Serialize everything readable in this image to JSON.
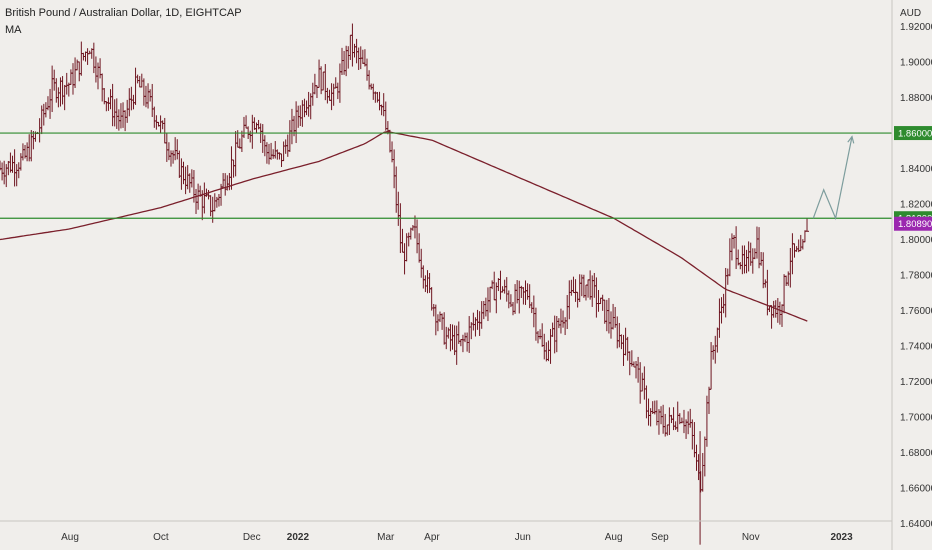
{
  "header": {
    "title": "British Pound / Australian Dollar, 1D, EIGHTCAP",
    "indicator": "MA"
  },
  "colors": {
    "background": "#f0eeeb",
    "bar": "#6e1520",
    "ma": "#7a1f2b",
    "level": "#2e8b2e",
    "arrow": "#7d9d9d",
    "current": "#9b27af"
  },
  "chart_data": {
    "type": "ohlc",
    "title": "British Pound / Australian Dollar, 1D, EIGHTCAP",
    "ylabel": "AUD",
    "ylim": [
      1.625,
      1.935
    ],
    "y_ticks": [
      "1.92000",
      "1.90000",
      "1.88000",
      "1.84000",
      "1.82000",
      "1.80000",
      "1.78000",
      "1.76000",
      "1.74000",
      "1.72000",
      "1.70000",
      "1.68000",
      "1.66000",
      "1.64000"
    ],
    "x_ticks": [
      "Aug",
      "Oct",
      "Dec",
      "2022",
      "Mar",
      "Apr",
      "Jun",
      "Aug",
      "Sep",
      "Nov",
      "2023"
    ],
    "levels": [
      {
        "value": 1.86,
        "label": "1.86000"
      },
      {
        "value": 1.812,
        "label": "1.81200"
      }
    ],
    "current_price": {
      "value": 1.8089,
      "label": "1.80890"
    },
    "close_path": [
      [
        "2021-06-15",
        1.84
      ],
      [
        "2021-07-01",
        1.845
      ],
      [
        "2021-07-10",
        1.86
      ],
      [
        "2021-07-20",
        1.885
      ],
      [
        "2021-08-01",
        1.888
      ],
      [
        "2021-08-14",
        1.91
      ],
      [
        "2021-08-25",
        1.88
      ],
      [
        "2021-09-05",
        1.865
      ],
      [
        "2021-09-15",
        1.888
      ],
      [
        "2021-09-25",
        1.875
      ],
      [
        "2021-10-05",
        1.855
      ],
      [
        "2021-10-15",
        1.838
      ],
      [
        "2021-10-25",
        1.825
      ],
      [
        "2021-11-05",
        1.818
      ],
      [
        "2021-11-15",
        1.838
      ],
      [
        "2021-11-25",
        1.858
      ],
      [
        "2021-12-05",
        1.87
      ],
      [
        "2021-12-10",
        1.85
      ],
      [
        "2021-12-20",
        1.845
      ],
      [
        "2022-01-01",
        1.87
      ],
      [
        "2022-01-15",
        1.892
      ],
      [
        "2022-01-25",
        1.88
      ],
      [
        "2022-02-05",
        1.91
      ],
      [
        "2022-02-15",
        1.895
      ],
      [
        "2022-02-25",
        1.88
      ],
      [
        "2022-03-05",
        1.845
      ],
      [
        "2022-03-12",
        1.79
      ],
      [
        "2022-03-20",
        1.805
      ],
      [
        "2022-03-30",
        1.77
      ],
      [
        "2022-04-10",
        1.745
      ],
      [
        "2022-04-20",
        1.74
      ],
      [
        "2022-05-01",
        1.755
      ],
      [
        "2022-05-15",
        1.775
      ],
      [
        "2022-05-25",
        1.765
      ],
      [
        "2022-06-05",
        1.77
      ],
      [
        "2022-06-15",
        1.735
      ],
      [
        "2022-06-25",
        1.752
      ],
      [
        "2022-07-05",
        1.77
      ],
      [
        "2022-07-15",
        1.775
      ],
      [
        "2022-07-25",
        1.76
      ],
      [
        "2022-08-05",
        1.745
      ],
      [
        "2022-08-15",
        1.73
      ],
      [
        "2022-08-25",
        1.702
      ],
      [
        "2022-09-05",
        1.695
      ],
      [
        "2022-09-15",
        1.702
      ],
      [
        "2022-09-22",
        1.692
      ],
      [
        "2022-09-28",
        1.66
      ],
      [
        "2022-10-05",
        1.73
      ],
      [
        "2022-10-12",
        1.76
      ],
      [
        "2022-10-20",
        1.8
      ],
      [
        "2022-10-28",
        1.782
      ],
      [
        "2022-11-05",
        1.8
      ],
      [
        "2022-11-12",
        1.765
      ],
      [
        "2022-11-20",
        1.76
      ],
      [
        "2022-11-28",
        1.792
      ],
      [
        "2022-12-05",
        1.79
      ],
      [
        "2022-12-09",
        1.8089
      ]
    ],
    "ma_path": [
      [
        "2021-06-15",
        1.8
      ],
      [
        "2021-08-01",
        1.806
      ],
      [
        "2021-10-01",
        1.818
      ],
      [
        "2021-12-01",
        1.834
      ],
      [
        "2022-01-15",
        1.844
      ],
      [
        "2022-02-15",
        1.854
      ],
      [
        "2022-03-01",
        1.861
      ],
      [
        "2022-04-01",
        1.856
      ],
      [
        "2022-06-01",
        1.834
      ],
      [
        "2022-08-01",
        1.812
      ],
      [
        "2022-09-15",
        1.79
      ],
      [
        "2022-10-15",
        1.772
      ],
      [
        "2022-11-15",
        1.762
      ],
      [
        "2022-12-09",
        1.754
      ]
    ],
    "projection": [
      [
        "2022-12-13",
        1.812
      ],
      [
        "2022-12-20",
        1.828
      ],
      [
        "2022-12-28",
        1.812
      ],
      [
        "2023-01-08",
        1.858
      ]
    ],
    "x_tick_dates": [
      "2021-08-01",
      "2021-10-01",
      "2021-12-01",
      "2022-01-01",
      "2022-03-01",
      "2022-04-01",
      "2022-06-01",
      "2022-08-01",
      "2022-09-01",
      "2022-11-01",
      "2023-01-01"
    ]
  }
}
